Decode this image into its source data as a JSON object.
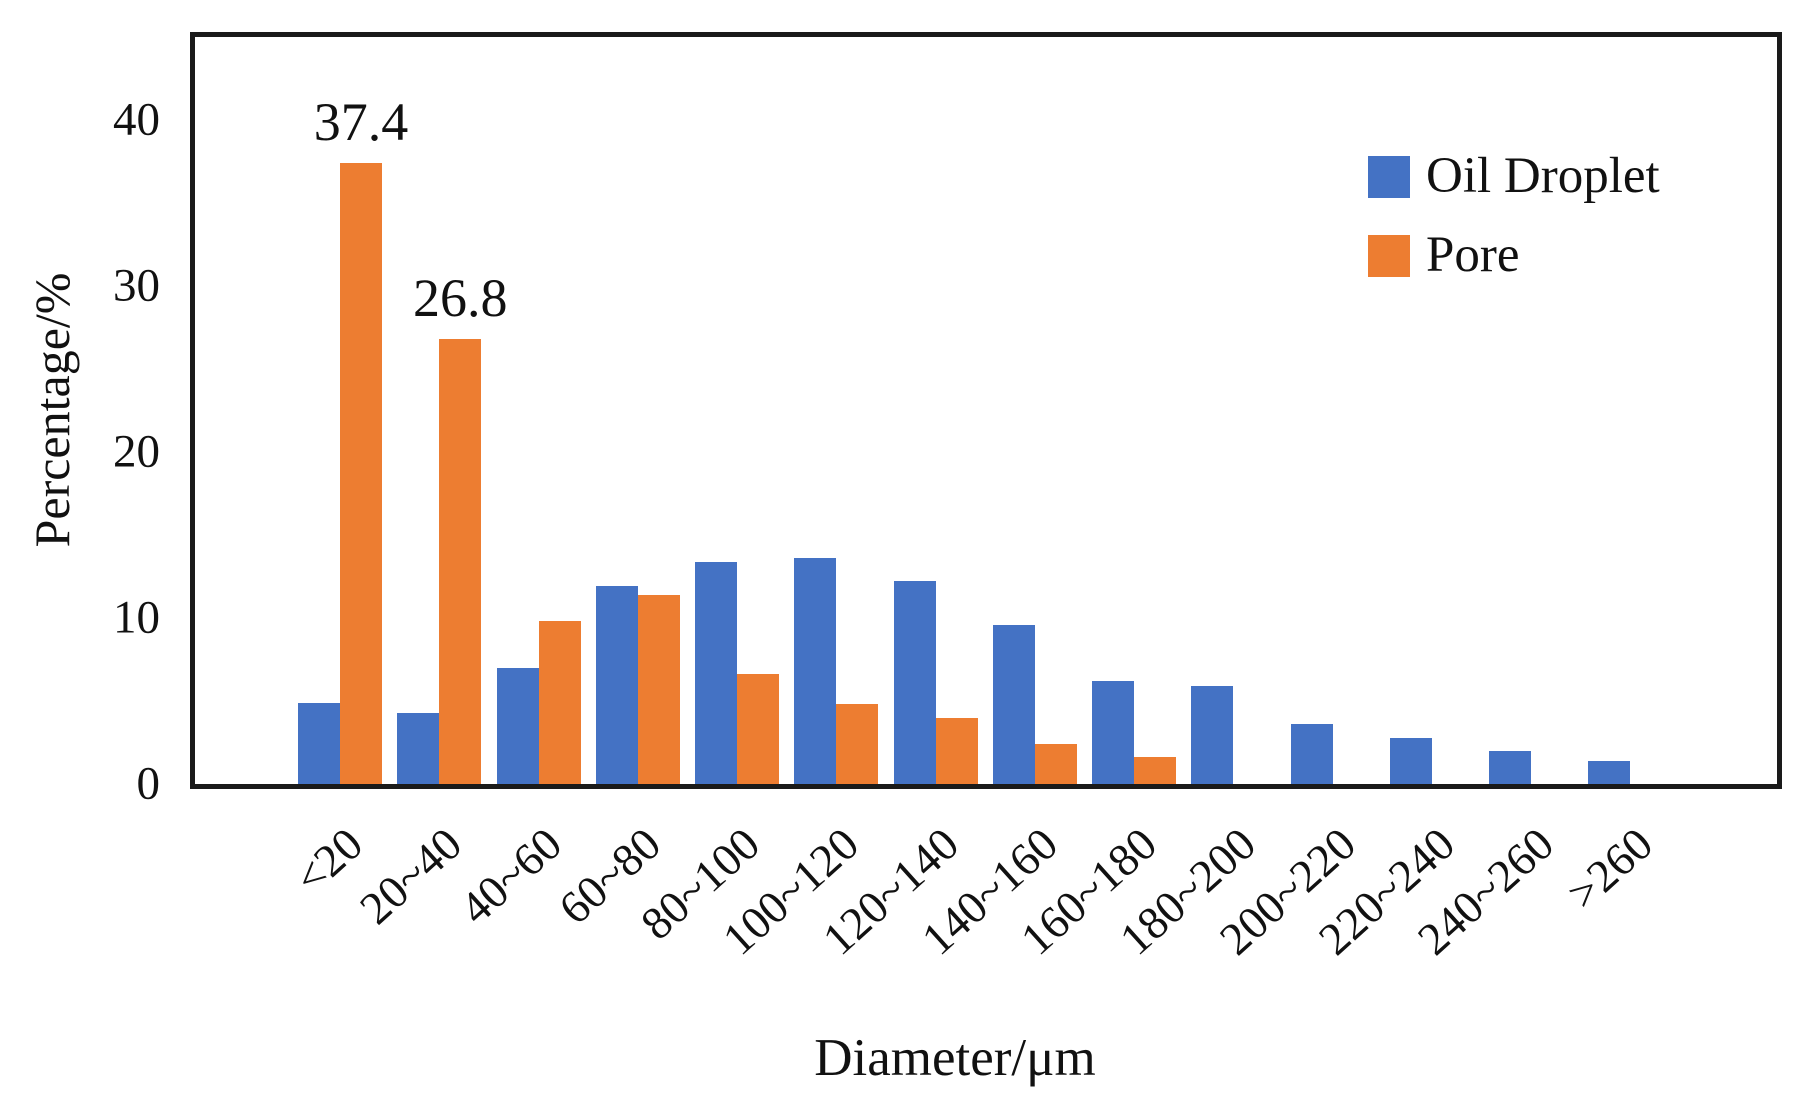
{
  "figure": {
    "ylabel": "Percentage/%",
    "xlabel": "Diameter/μm",
    "legend": [
      {
        "label": "Oil Droplet",
        "color": "#4472C4"
      },
      {
        "label": "Pore",
        "color": "#ED7D31"
      }
    ]
  },
  "chart_data": {
    "type": "bar",
    "title": "",
    "xlabel": "Diameter/μm",
    "ylabel": "Percentage/%",
    "ylim": [
      0,
      45
    ],
    "yticks": [
      0,
      10,
      20,
      30,
      40
    ],
    "grid": false,
    "legend_position": "upper right",
    "categories": [
      "<20",
      "20~40",
      "40~60",
      "60~80",
      "80~100",
      "100~120",
      "120~140",
      "140~160",
      "160~180",
      "180~200",
      "200~220",
      "220~240",
      "240~260",
      ">260"
    ],
    "series": [
      {
        "name": "Oil Droplet",
        "color": "#4472C4",
        "values": [
          4.9,
          4.3,
          7.0,
          11.9,
          13.4,
          13.6,
          12.2,
          9.6,
          6.2,
          5.9,
          3.6,
          2.8,
          2.0,
          1.4
        ]
      },
      {
        "name": "Pore",
        "color": "#ED7D31",
        "values": [
          37.4,
          26.8,
          9.8,
          11.4,
          6.6,
          4.8,
          4.0,
          2.4,
          1.6,
          0,
          0,
          0,
          0,
          0
        ]
      }
    ],
    "annotations": [
      {
        "text": "37.4",
        "series": "Pore",
        "category": "<20"
      },
      {
        "text": "26.8",
        "series": "Pore",
        "category": "20~40"
      }
    ]
  }
}
